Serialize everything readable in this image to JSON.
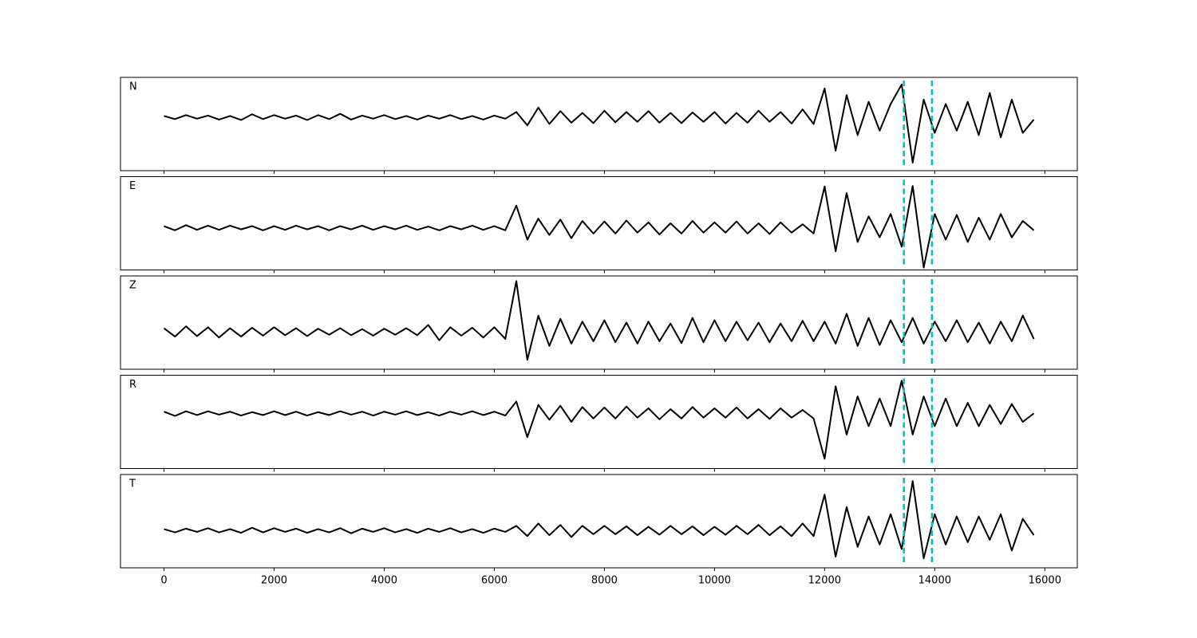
{
  "chart_data": {
    "type": "line",
    "color": "#000000",
    "xlim": [
      -790,
      16590
    ],
    "xticks": [
      0,
      2000,
      4000,
      6000,
      8000,
      10000,
      12000,
      14000,
      16000
    ],
    "x": [
      0,
      200,
      400,
      600,
      800,
      1000,
      1200,
      1400,
      1600,
      1800,
      2000,
      2200,
      2400,
      2600,
      2800,
      3000,
      3200,
      3400,
      3600,
      3800,
      4000,
      4200,
      4400,
      4600,
      4800,
      5000,
      5200,
      5400,
      5600,
      5800,
      6000,
      6200,
      6400,
      6600,
      6800,
      7000,
      7200,
      7400,
      7600,
      7800,
      8000,
      8200,
      8400,
      8600,
      8800,
      9000,
      9200,
      9400,
      9600,
      9800,
      10000,
      10200,
      10400,
      10600,
      10800,
      11000,
      11200,
      11400,
      11600,
      11800,
      12000,
      12200,
      12400,
      12600,
      12800,
      13000,
      13200,
      13400,
      13600,
      13800,
      14000,
      14200,
      14400,
      14600,
      14800,
      15000,
      15200,
      15400,
      15600,
      15800
    ],
    "vlines": {
      "x": [
        13440,
        13950
      ],
      "color": "#00bfbf",
      "style": "dashed"
    },
    "series": [
      {
        "name": "N",
        "ylim": [
          -1.2,
          0.9
        ],
        "values": [
          0.03,
          -0.04,
          0.05,
          -0.03,
          0.04,
          -0.05,
          0.03,
          -0.06,
          0.07,
          -0.04,
          0.05,
          -0.03,
          0.04,
          -0.06,
          0.05,
          -0.04,
          0.08,
          -0.05,
          0.04,
          -0.03,
          0.05,
          -0.04,
          0.03,
          -0.05,
          0.04,
          -0.03,
          0.05,
          -0.04,
          0.03,
          -0.05,
          0.04,
          -0.03,
          0.12,
          -0.18,
          0.22,
          -0.15,
          0.14,
          -0.12,
          0.1,
          -0.13,
          0.15,
          -0.11,
          0.12,
          -0.1,
          0.14,
          -0.12,
          0.1,
          -0.13,
          0.11,
          -0.1,
          0.12,
          -0.14,
          0.1,
          -0.12,
          0.15,
          -0.1,
          0.12,
          -0.14,
          0.18,
          -0.15,
          0.65,
          -0.75,
          0.5,
          -0.4,
          0.35,
          -0.3,
          0.3,
          0.74,
          -1.02,
          0.4,
          -0.35,
          0.3,
          -0.3,
          0.35,
          -0.4,
          0.55,
          -0.45,
          0.4,
          -0.35,
          -0.05
        ]
      },
      {
        "name": "E",
        "ylim": [
          -0.9,
          1.1
        ],
        "values": [
          0.04,
          -0.05,
          0.06,
          -0.04,
          0.05,
          -0.04,
          0.05,
          -0.03,
          0.04,
          -0.05,
          0.04,
          -0.04,
          0.05,
          -0.03,
          0.04,
          -0.05,
          0.04,
          -0.03,
          0.05,
          -0.04,
          0.04,
          -0.03,
          0.05,
          -0.04,
          0.03,
          -0.05,
          0.04,
          -0.03,
          0.05,
          -0.04,
          0.04,
          -0.05,
          0.48,
          -0.25,
          0.2,
          -0.15,
          0.18,
          -0.22,
          0.15,
          -0.12,
          0.14,
          -0.12,
          0.16,
          -0.1,
          0.12,
          -0.14,
          0.1,
          -0.12,
          0.15,
          -0.1,
          0.12,
          -0.1,
          0.14,
          -0.12,
          0.1,
          -0.13,
          0.12,
          -0.1,
          0.08,
          -0.12,
          0.89,
          -0.5,
          0.75,
          -0.3,
          0.25,
          -0.2,
          0.3,
          -0.4,
          0.9,
          -0.85,
          0.3,
          -0.25,
          0.28,
          -0.3,
          0.22,
          -0.25,
          0.3,
          -0.2,
          0.15,
          -0.05
        ]
      },
      {
        "name": "Z",
        "ylim": [
          -0.8,
          1.2
        ],
        "values": [
          0.08,
          -0.1,
          0.12,
          -0.09,
          0.1,
          -0.12,
          0.08,
          -0.1,
          0.09,
          -0.08,
          0.1,
          -0.07,
          0.08,
          -0.09,
          0.07,
          -0.06,
          0.08,
          -0.07,
          0.06,
          -0.08,
          0.07,
          -0.06,
          0.08,
          -0.07,
          0.15,
          -0.18,
          0.1,
          -0.08,
          0.09,
          -0.12,
          0.1,
          -0.15,
          1.09,
          -0.6,
          0.35,
          -0.3,
          0.28,
          -0.25,
          0.22,
          -0.2,
          0.25,
          -0.22,
          0.2,
          -0.25,
          0.22,
          -0.2,
          0.18,
          -0.24,
          0.3,
          -0.22,
          0.25,
          -0.2,
          0.22,
          -0.18,
          0.2,
          -0.22,
          0.18,
          -0.2,
          0.24,
          -0.2,
          0.22,
          -0.25,
          0.39,
          -0.3,
          0.3,
          -0.28,
          0.25,
          -0.22,
          0.3,
          -0.25,
          0.22,
          -0.2,
          0.25,
          -0.22,
          0.2,
          -0.25,
          0.22,
          -0.2,
          0.35,
          -0.15
        ]
      },
      {
        "name": "R",
        "ylim": [
          -1.3,
          0.9
        ],
        "values": [
          0.04,
          -0.06,
          0.05,
          -0.04,
          0.05,
          -0.03,
          0.04,
          -0.05,
          0.03,
          -0.04,
          0.05,
          -0.04,
          0.04,
          -0.05,
          0.03,
          -0.04,
          0.05,
          -0.03,
          0.04,
          -0.05,
          0.04,
          -0.03,
          0.05,
          -0.04,
          0.03,
          -0.05,
          0.04,
          -0.03,
          0.05,
          -0.04,
          0.04,
          -0.05,
          0.28,
          -0.56,
          0.2,
          -0.15,
          0.18,
          -0.2,
          0.15,
          -0.12,
          0.14,
          -0.12,
          0.16,
          -0.1,
          0.12,
          -0.14,
          0.1,
          -0.12,
          0.15,
          -0.1,
          0.12,
          -0.1,
          0.14,
          -0.12,
          0.1,
          -0.13,
          0.12,
          -0.1,
          0.08,
          -0.12,
          -1.07,
          0.64,
          -0.5,
          0.4,
          -0.3,
          0.35,
          -0.3,
          0.77,
          -0.5,
          0.4,
          -0.3,
          0.35,
          -0.3,
          0.25,
          -0.3,
          0.2,
          -0.25,
          0.22,
          -0.2,
          0.0
        ]
      },
      {
        "name": "T",
        "ylim": [
          -0.8,
          1.2
        ],
        "values": [
          0.03,
          -0.04,
          0.04,
          -0.03,
          0.05,
          -0.04,
          0.03,
          -0.05,
          0.06,
          -0.04,
          0.05,
          -0.03,
          0.04,
          -0.05,
          0.03,
          -0.04,
          0.05,
          -0.06,
          0.04,
          -0.03,
          0.05,
          -0.04,
          0.03,
          -0.05,
          0.04,
          -0.03,
          0.05,
          -0.04,
          0.03,
          -0.05,
          0.04,
          -0.03,
          0.1,
          -0.12,
          0.15,
          -0.1,
          0.12,
          -0.14,
          0.1,
          -0.08,
          0.1,
          -0.08,
          0.09,
          -0.1,
          0.08,
          -0.09,
          0.1,
          -0.08,
          0.09,
          -0.1,
          0.08,
          -0.09,
          0.1,
          -0.08,
          0.12,
          -0.1,
          0.09,
          -0.12,
          0.15,
          -0.12,
          0.77,
          -0.56,
          0.5,
          -0.35,
          0.3,
          -0.3,
          0.35,
          -0.4,
          1.06,
          -0.6,
          0.35,
          -0.3,
          0.3,
          -0.25,
          0.3,
          -0.2,
          0.35,
          -0.43,
          0.25,
          -0.1
        ]
      }
    ]
  }
}
